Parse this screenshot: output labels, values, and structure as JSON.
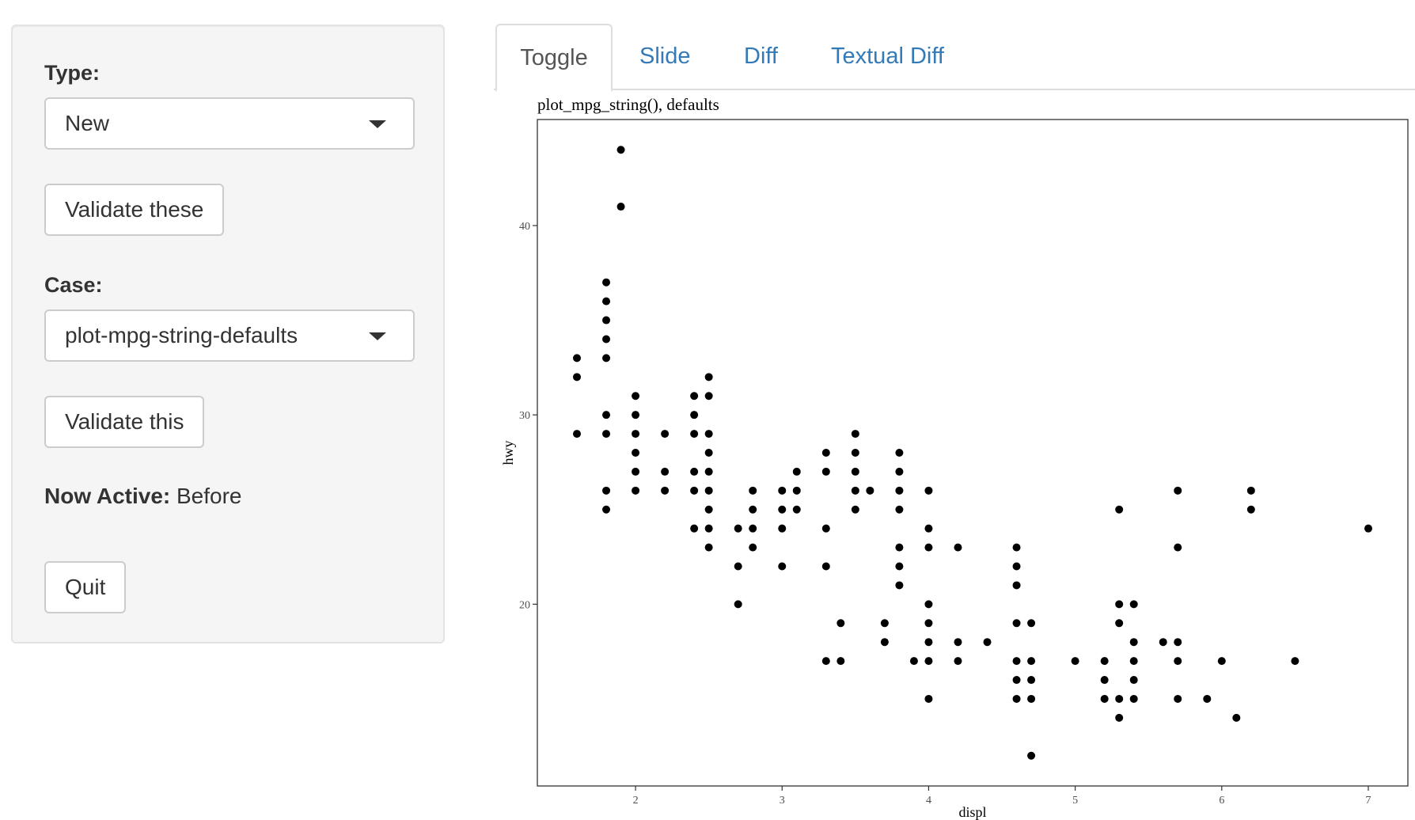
{
  "sidebar": {
    "type_label": "Type:",
    "type_value": "New",
    "validate_these": "Validate these",
    "case_label": "Case:",
    "case_value": "plot-mpg-string-defaults",
    "validate_this": "Validate this",
    "now_active_label": "Now Active:",
    "now_active_value": "Before",
    "quit": "Quit"
  },
  "tabs": [
    {
      "label": "Toggle",
      "active": true
    },
    {
      "label": "Slide",
      "active": false
    },
    {
      "label": "Diff",
      "active": false
    },
    {
      "label": "Textual Diff",
      "active": false
    }
  ],
  "colors": {
    "link": "#337ab7",
    "panel_bg": "#f5f5f5",
    "point": "#000000"
  },
  "chart_data": {
    "type": "scatter",
    "title": "plot_mpg_string(), defaults",
    "xlabel": "displ",
    "ylabel": "hwy",
    "xlim": [
      1.33,
      7.27
    ],
    "ylim": [
      10.4,
      45.6
    ],
    "xticks": [
      2,
      3,
      4,
      5,
      6,
      7
    ],
    "yticks": [
      20,
      30,
      40
    ],
    "grid": false,
    "points": [
      [
        1.6,
        33
      ],
      [
        1.6,
        32
      ],
      [
        1.6,
        29
      ],
      [
        1.8,
        37
      ],
      [
        1.8,
        36
      ],
      [
        1.8,
        35
      ],
      [
        1.8,
        34
      ],
      [
        1.8,
        33
      ],
      [
        1.8,
        30
      ],
      [
        1.8,
        29
      ],
      [
        1.8,
        26
      ],
      [
        1.8,
        25
      ],
      [
        1.9,
        44
      ],
      [
        1.9,
        41
      ],
      [
        2.0,
        31
      ],
      [
        2.0,
        30
      ],
      [
        2.0,
        29
      ],
      [
        2.0,
        28
      ],
      [
        2.0,
        27
      ],
      [
        2.0,
        26
      ],
      [
        2.2,
        29
      ],
      [
        2.2,
        27
      ],
      [
        2.2,
        26
      ],
      [
        2.4,
        31
      ],
      [
        2.4,
        30
      ],
      [
        2.4,
        29
      ],
      [
        2.4,
        27
      ],
      [
        2.4,
        26
      ],
      [
        2.4,
        24
      ],
      [
        2.5,
        32
      ],
      [
        2.5,
        31
      ],
      [
        2.5,
        29
      ],
      [
        2.5,
        28
      ],
      [
        2.5,
        27
      ],
      [
        2.5,
        26
      ],
      [
        2.5,
        25
      ],
      [
        2.5,
        24
      ],
      [
        2.5,
        23
      ],
      [
        2.7,
        24
      ],
      [
        2.7,
        22
      ],
      [
        2.7,
        20
      ],
      [
        2.8,
        26
      ],
      [
        2.8,
        25
      ],
      [
        2.8,
        24
      ],
      [
        2.8,
        23
      ],
      [
        3.0,
        26
      ],
      [
        3.0,
        25
      ],
      [
        3.0,
        24
      ],
      [
        3.0,
        22
      ],
      [
        3.1,
        27
      ],
      [
        3.1,
        26
      ],
      [
        3.1,
        25
      ],
      [
        3.3,
        28
      ],
      [
        3.3,
        27
      ],
      [
        3.3,
        24
      ],
      [
        3.3,
        22
      ],
      [
        3.3,
        17
      ],
      [
        3.4,
        19
      ],
      [
        3.4,
        17
      ],
      [
        3.5,
        29
      ],
      [
        3.5,
        28
      ],
      [
        3.5,
        27
      ],
      [
        3.5,
        26
      ],
      [
        3.5,
        25
      ],
      [
        3.6,
        26
      ],
      [
        3.7,
        19
      ],
      [
        3.7,
        18
      ],
      [
        3.8,
        28
      ],
      [
        3.8,
        27
      ],
      [
        3.8,
        26
      ],
      [
        3.8,
        25
      ],
      [
        3.8,
        23
      ],
      [
        3.8,
        22
      ],
      [
        3.8,
        21
      ],
      [
        3.9,
        17
      ],
      [
        4.0,
        26
      ],
      [
        4.0,
        24
      ],
      [
        4.0,
        23
      ],
      [
        4.0,
        20
      ],
      [
        4.0,
        19
      ],
      [
        4.0,
        18
      ],
      [
        4.0,
        17
      ],
      [
        4.0,
        15
      ],
      [
        4.2,
        23
      ],
      [
        4.2,
        18
      ],
      [
        4.2,
        17
      ],
      [
        4.4,
        18
      ],
      [
        4.6,
        23
      ],
      [
        4.6,
        22
      ],
      [
        4.6,
        21
      ],
      [
        4.6,
        19
      ],
      [
        4.6,
        17
      ],
      [
        4.6,
        16
      ],
      [
        4.6,
        15
      ],
      [
        4.7,
        19
      ],
      [
        4.7,
        17
      ],
      [
        4.7,
        16
      ],
      [
        4.7,
        15
      ],
      [
        4.7,
        12
      ],
      [
        5.0,
        17
      ],
      [
        5.2,
        17
      ],
      [
        5.2,
        16
      ],
      [
        5.2,
        15
      ],
      [
        5.3,
        25
      ],
      [
        5.3,
        20
      ],
      [
        5.3,
        19
      ],
      [
        5.3,
        15
      ],
      [
        5.3,
        14
      ],
      [
        5.4,
        20
      ],
      [
        5.4,
        18
      ],
      [
        5.4,
        17
      ],
      [
        5.4,
        16
      ],
      [
        5.4,
        15
      ],
      [
        5.6,
        18
      ],
      [
        5.7,
        26
      ],
      [
        5.7,
        23
      ],
      [
        5.7,
        18
      ],
      [
        5.7,
        17
      ],
      [
        5.7,
        15
      ],
      [
        5.9,
        15
      ],
      [
        6.0,
        17
      ],
      [
        6.1,
        14
      ],
      [
        6.2,
        26
      ],
      [
        6.2,
        25
      ],
      [
        6.5,
        17
      ],
      [
        7.0,
        24
      ]
    ]
  }
}
